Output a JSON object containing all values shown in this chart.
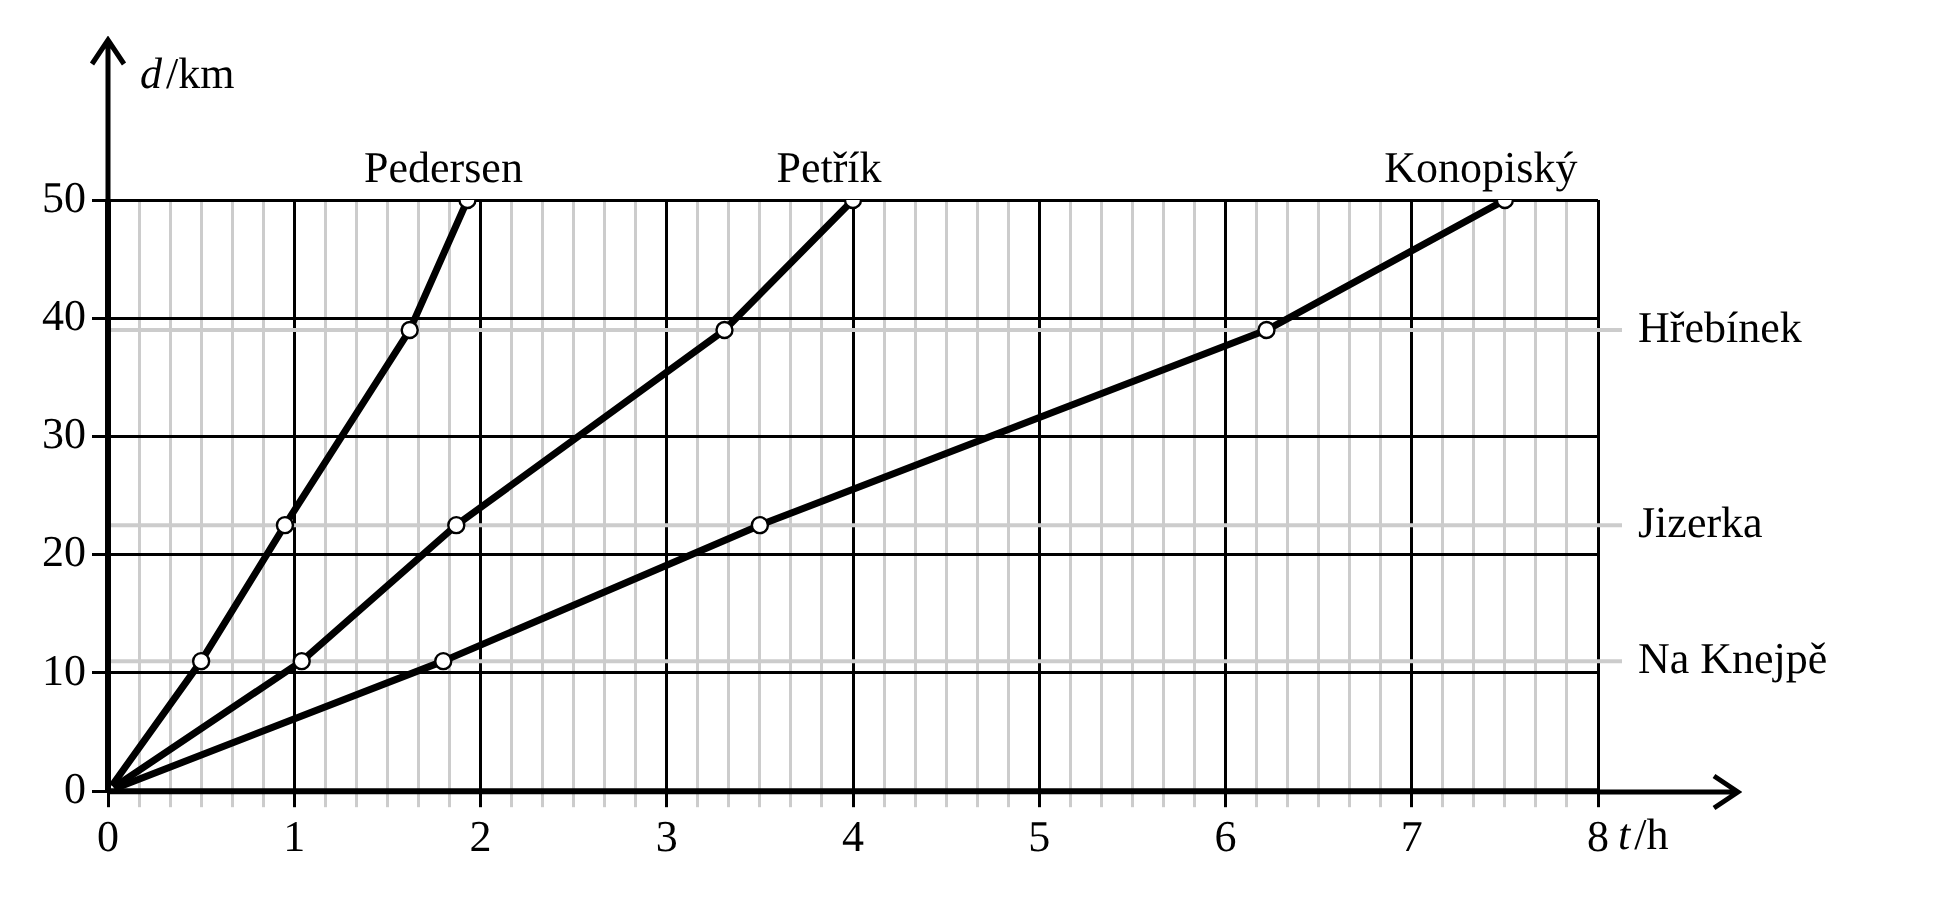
{
  "chart_data": {
    "type": "line",
    "xlabel": "t/h",
    "ylabel": "d/km",
    "xlim": [
      0,
      8
    ],
    "xticks": [
      0,
      {
        "value": 0.1667,
        "label": null
      },
      {
        "value": 0.3333,
        "label": null
      },
      {
        "value": 0.5,
        "label": null
      },
      {
        "value": 0.6667,
        "label": null
      },
      {
        "value": 0.8333,
        "label": null
      },
      1,
      {
        "value": 1.1667,
        "label": null
      },
      {
        "value": 1.3333,
        "label": null
      },
      {
        "value": 1.5,
        "label": null
      },
      {
        "value": 1.6667,
        "label": null
      },
      {
        "value": 1.8333,
        "label": null
      },
      2,
      {
        "value": 2.1667,
        "label": null
      },
      {
        "value": 2.3333,
        "label": null
      },
      {
        "value": 2.5,
        "label": null
      },
      {
        "value": 2.6667,
        "label": null
      },
      {
        "value": 2.8333,
        "label": null
      },
      3,
      {
        "value": 3.1667,
        "label": null
      },
      {
        "value": 3.3333,
        "label": null
      },
      {
        "value": 3.5,
        "label": null
      },
      {
        "value": 3.6667,
        "label": null
      },
      {
        "value": 3.8333,
        "label": null
      },
      4,
      {
        "value": 4.1667,
        "label": null
      },
      {
        "value": 4.3333,
        "label": null
      },
      {
        "value": 4.5,
        "label": null
      },
      {
        "value": 4.6667,
        "label": null
      },
      {
        "value": 4.8333,
        "label": null
      },
      5,
      {
        "value": 5.1667,
        "label": null
      },
      {
        "value": 5.3333,
        "label": null
      },
      {
        "value": 5.5,
        "label": null
      },
      {
        "value": 5.6667,
        "label": null
      },
      {
        "value": 5.8333,
        "label": null
      },
      6,
      {
        "value": 6.1667,
        "label": null
      },
      {
        "value": 6.3333,
        "label": null
      },
      {
        "value": 6.5,
        "label": null
      },
      {
        "value": 6.6667,
        "label": null
      },
      {
        "value": 6.8333,
        "label": null
      },
      7,
      {
        "value": 7.1667,
        "label": null
      },
      {
        "value": 7.3333,
        "label": null
      },
      {
        "value": 7.5,
        "label": null
      },
      {
        "value": 7.6667,
        "label": null
      },
      {
        "value": 7.8333,
        "label": null
      },
      8
    ],
    "ylim": [
      0,
      50
    ],
    "yticks": [
      0,
      10,
      20,
      30,
      40,
      50
    ],
    "grid": true,
    "legend": false,
    "marker": "circle",
    "line_style": "solid",
    "series": [
      {
        "name": "Pedersen",
        "color": "#000000",
        "x": [
          0,
          0.5,
          0.95,
          1.62,
          1.93
        ],
        "values": [
          0,
          11,
          22.5,
          39,
          50
        ]
      },
      {
        "name": "Petřík",
        "color": "#000000",
        "x": [
          0,
          1.04,
          1.87,
          3.31,
          4
        ],
        "values": [
          0,
          11,
          22.5,
          39,
          50
        ]
      },
      {
        "name": "Konopiský",
        "color": "#000000",
        "x": [
          0,
          1.8,
          3.5,
          6.22,
          7.5
        ],
        "values": [
          0,
          11,
          22.5,
          39,
          50
        ]
      }
    ],
    "ref_lines": [
      {
        "axis": "y",
        "value": 11,
        "label": "Na Knejpě",
        "color": "#cccccc"
      },
      {
        "axis": "y",
        "value": 22.5,
        "label": "Jizerka",
        "color": "#cccccc"
      },
      {
        "axis": "y",
        "value": 39,
        "label": "Hřebínek",
        "color": "#cccccc"
      }
    ]
  }
}
